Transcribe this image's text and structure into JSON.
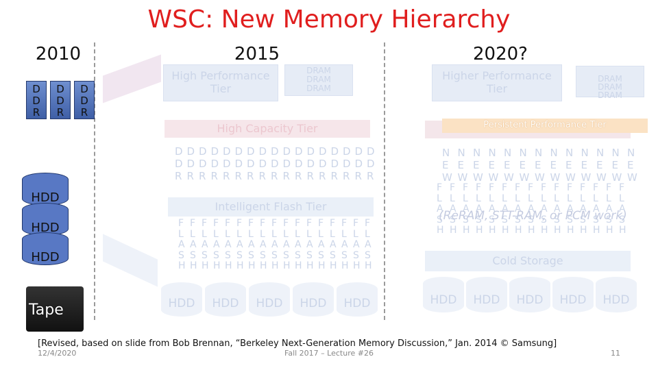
{
  "header": {
    "title": "WSC: New Memory Hierarchy"
  },
  "eras": [
    {
      "label": "2010"
    },
    {
      "label": "2015"
    },
    {
      "label": "2020?"
    }
  ],
  "left": {
    "ddr_letters": [
      "D",
      "D",
      "R"
    ],
    "hdd": "HDD",
    "tape": "Tape"
  },
  "middle": {
    "performance_tier": "High Performance Tier",
    "dram": "DRAM",
    "capacity_tier": "High Capacity Tier",
    "ddr_letters": [
      "D",
      "D",
      "R"
    ],
    "flash_tier": "Intelligent Flash Tier",
    "flash_letters": [
      "F",
      "L",
      "A",
      "S",
      "H"
    ],
    "hdd": "HDD"
  },
  "right": {
    "performance_tier": "Higher Performance Tier",
    "dram": "DRAM",
    "persistent_tier": "Persistent Performance Tier",
    "new_letters": [
      "N",
      "E",
      "W"
    ],
    "flash_letters": [
      "F",
      "L",
      "A",
      "S",
      "H"
    ],
    "note": "(ReRAM, STT-RAM, or PCM work)",
    "cold_storage": "Cold Storage",
    "hdd": "HDD"
  },
  "footer": {
    "citation": "[Revised, based on slide from Bob Brennan, “Berkeley Next-Generation Memory Discussion,” Jan. 2014 © Samsung]",
    "date": "12/4/2020",
    "course": "Fall 2017 – Lecture #26",
    "page": "11"
  }
}
